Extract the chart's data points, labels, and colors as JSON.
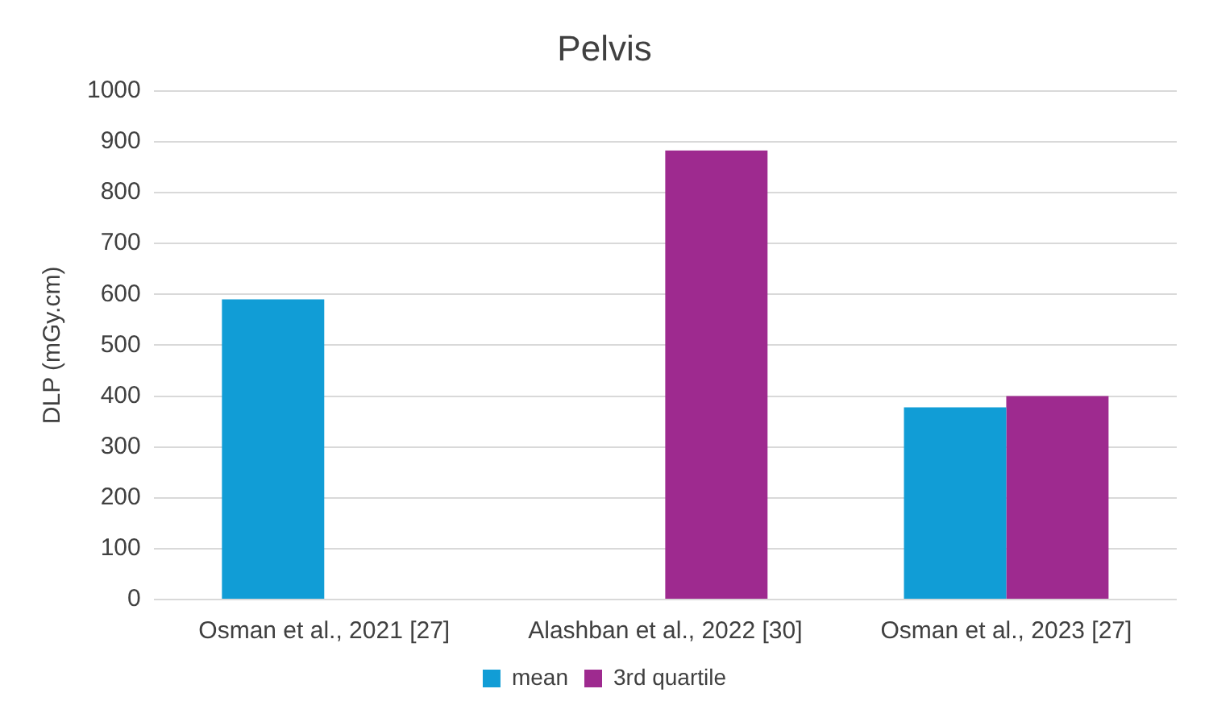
{
  "chart_data": {
    "type": "bar",
    "title": "Pelvis",
    "ylabel": "DLP (mGy.cm)",
    "categories": [
      "Osman et al., 2021 [27]",
      "Alashban et al., 2022 [30]",
      "Osman et al., 2023 [27]"
    ],
    "series": [
      {
        "name": "mean",
        "color": "#119dd6",
        "values": [
          590,
          null,
          378
        ]
      },
      {
        "name": "3rd quartile",
        "color": "#9e2a8f",
        "values": [
          null,
          883,
          400
        ]
      }
    ],
    "ylim": [
      0,
      1000
    ],
    "yticks": [
      0,
      100,
      200,
      300,
      400,
      500,
      600,
      700,
      800,
      900,
      1000
    ],
    "grid": "y",
    "legend": "bottom"
  }
}
